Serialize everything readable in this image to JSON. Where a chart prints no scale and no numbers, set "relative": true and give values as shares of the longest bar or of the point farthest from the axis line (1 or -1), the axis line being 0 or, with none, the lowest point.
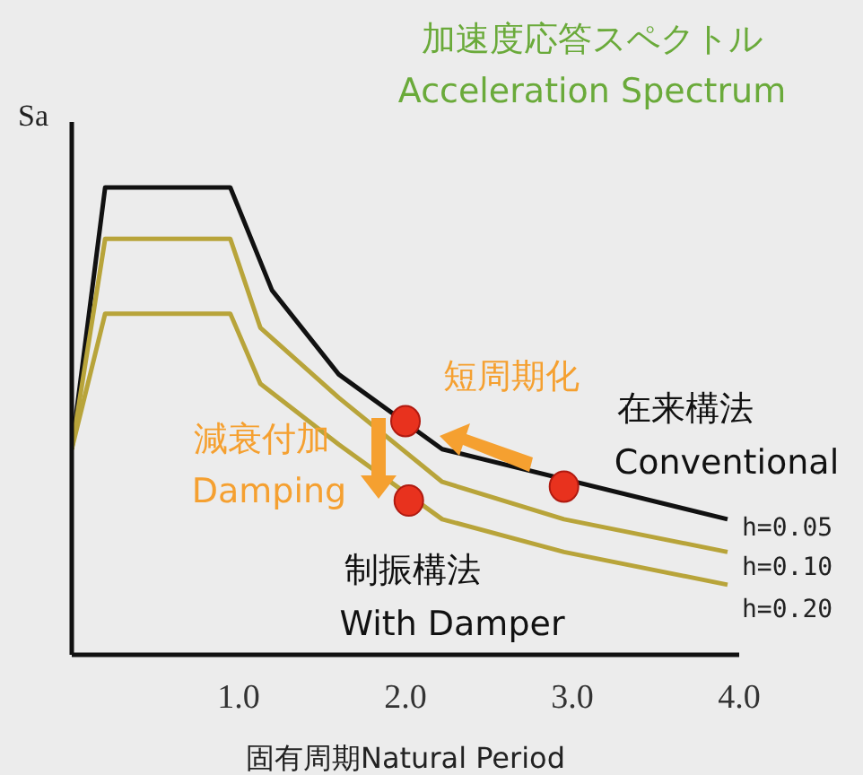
{
  "chart_data": {
    "type": "line",
    "title": "加速度応答スペクトル",
    "subtitle": "Acceleration Spectrum",
    "xlabel": "固有周期Natural Period",
    "ylabel": "Sa",
    "annotations": [
      "短周期化",
      "減衰付加",
      "Damping",
      "在来構法",
      "Conventional",
      "制振構法",
      "With Damper"
    ],
    "relative": true,
    "xlim": [
      0,
      4
    ],
    "xticks": [
      {
        "value": 1,
        "label": "1.0"
      },
      {
        "value": 2,
        "label": "2.0"
      },
      {
        "value": 3,
        "label": "3.0"
      },
      {
        "value": 4,
        "label": "4.0"
      }
    ],
    "grid": false,
    "legend": false,
    "series": [
      {
        "name": "h=0.05",
        "color": "#111111",
        "x": [
          0,
          0.2,
          0.95,
          1.2,
          1.6,
          2.22,
          3.93
        ],
        "values": [
          0.44,
          1,
          1,
          0.78,
          0.6,
          0.44,
          0.29
        ]
      },
      {
        "name": "h=0.10",
        "color": "#b8a43a",
        "x": [
          0,
          0.2,
          0.95,
          1.13,
          1.6,
          2.22,
          2.95,
          3.93
        ],
        "values": [
          0.44,
          0.89,
          0.89,
          0.7,
          0.55,
          0.37,
          0.29,
          0.22
        ]
      },
      {
        "name": "h=0.20",
        "color": "#b8a43a",
        "x": [
          0,
          0.2,
          0.95,
          1.13,
          1.6,
          2.22,
          2.95,
          3.93
        ],
        "values": [
          0.44,
          0.73,
          0.73,
          0.58,
          0.45,
          0.29,
          0.22,
          0.15
        ]
      },
      {
        "type": "scatter",
        "color": "#e8321e",
        "x": [
          2.0,
          2.95,
          2.02
        ],
        "values": [
          0.5,
          0.36,
          0.33
        ]
      }
    ]
  }
}
